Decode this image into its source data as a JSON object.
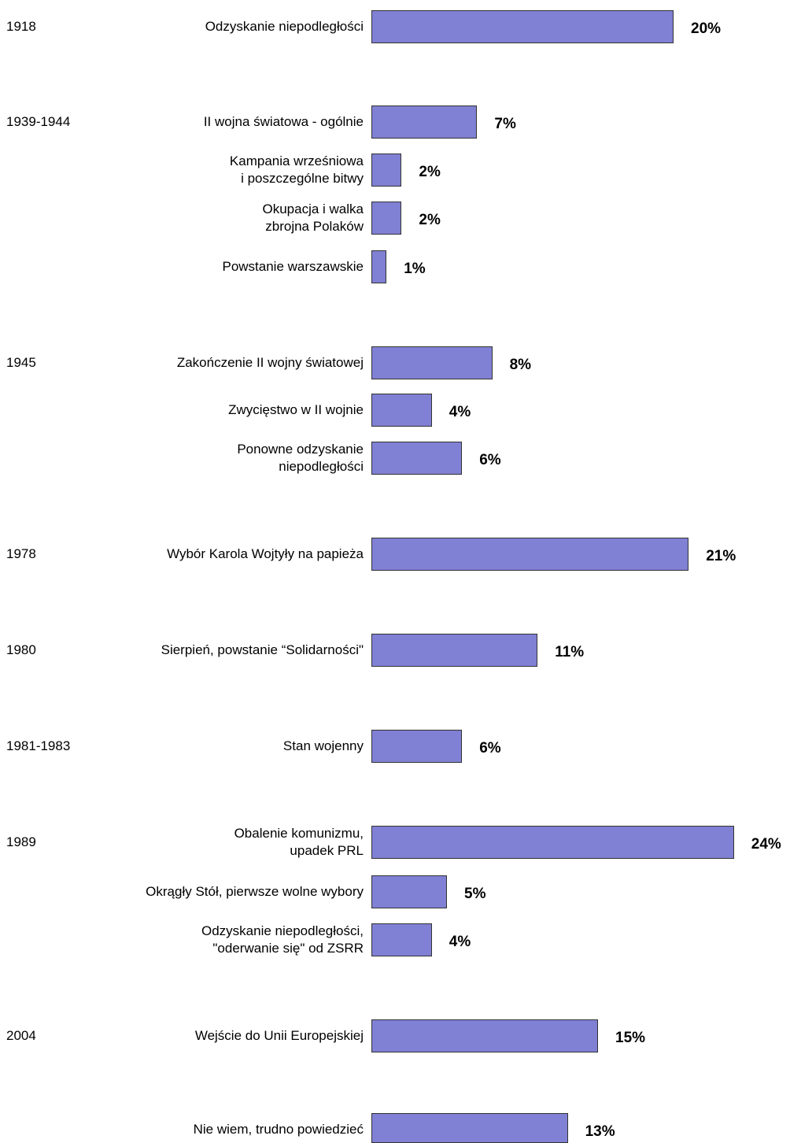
{
  "chart_data": {
    "type": "bar",
    "orientation": "horizontal",
    "color": "#8080d4",
    "categories": [
      "Odzyskanie niepodległości",
      "II wojna światowa - ogólnie",
      "Kampania wrześniowa\ni poszczególne bitwy",
      "Okupacja i walka \nzbrojna Polaków",
      "Powstanie warszawskie",
      "Zakończenie II wojny światowej",
      "Zwycięstwo w II wojnie",
      "Ponowne odzyskanie\nniepodległości",
      "Wybór Karola Wojtyły na papieża",
      "Sierpień, powstanie “Solidarności\"",
      "Stan wojenny",
      "Obalenie komunizmu,\nupadek PRL",
      "Okrągły Stół, pierwsze wolne wybory",
      "Odzyskanie niepodległości,\n\"oderwanie się\" od ZSRR",
      "Wejście do Unii Europejskiej",
      "Nie wiem, trudno powiedzieć"
    ],
    "periods": [
      "1918",
      "1939-1944",
      null,
      null,
      null,
      "1945",
      null,
      null,
      "1978",
      "1980",
      "1981-1983",
      "1989",
      null,
      null,
      "2004",
      null
    ],
    "values": [
      20,
      7,
      2,
      2,
      1,
      8,
      4,
      6,
      21,
      11,
      6,
      24,
      5,
      4,
      15,
      13
    ],
    "value_labels": [
      "20%",
      "7%",
      "2%",
      "2%",
      "1%",
      "8%",
      "4%",
      "6%",
      "21%",
      "11%",
      "6%",
      "24%",
      "5%",
      "4%",
      "15%",
      "13%"
    ]
  }
}
